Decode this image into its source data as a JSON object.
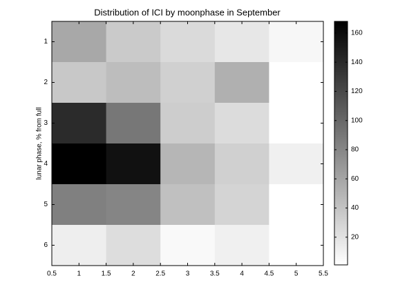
{
  "chart_data": {
    "type": "heatmap",
    "title": "Distribution of ICI by moonphase in September",
    "ylabel": "lunar phase, % from full",
    "xlim": [
      0.5,
      5.5
    ],
    "xticks": [
      0.5,
      1,
      1.5,
      2,
      2.5,
      3,
      3.5,
      4,
      4.5,
      5,
      5.5
    ],
    "ylim": [
      0.5,
      6.5
    ],
    "yticks": [
      1,
      2,
      3,
      4,
      5,
      6
    ],
    "z": [
      [
        58,
        36,
        25,
        17,
        6
      ],
      [
        37,
        44,
        32,
        53,
        1
      ],
      [
        140,
        90,
        34,
        24,
        1
      ],
      [
        168,
        157,
        49,
        32,
        11
      ],
      [
        84,
        81,
        42,
        29,
        1
      ],
      [
        12,
        23,
        5,
        11,
        1
      ]
    ],
    "colormap": "reversed-gray",
    "clim": [
      1,
      168
    ],
    "cticks": [
      20,
      40,
      60,
      80,
      100,
      120,
      140,
      160
    ]
  }
}
